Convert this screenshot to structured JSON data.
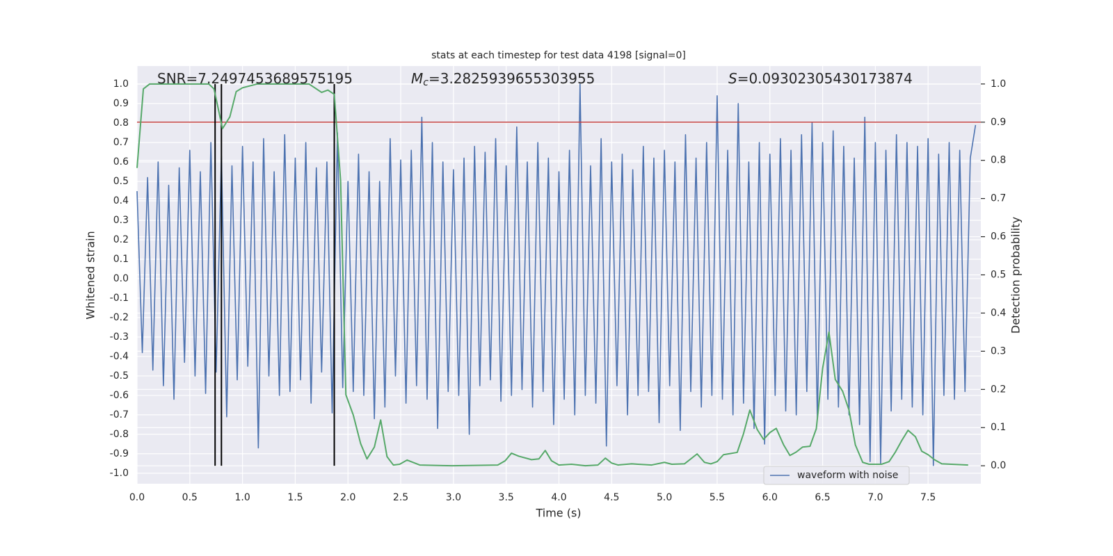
{
  "chart_data": {
    "type": "line",
    "title": "stats at each timestep for test data 4198 [signal=0]",
    "x_label": "Time (s)",
    "y_label": "Whitened strain",
    "y2_label": "Detection probability",
    "annotations": [
      {
        "text": "SNR=7.2497453689575195"
      },
      {
        "symbol": "M",
        "subscript": "c",
        "text": "=3.2825939655303955"
      },
      {
        "symbol": "S",
        "text": "=0.09302305430173874"
      }
    ],
    "xlim": [
      0,
      8
    ],
    "ylim": [
      -1.054,
      1.093
    ],
    "y2lim": [
      -0.047,
      1.047
    ],
    "xticks": [
      {
        "value": 0,
        "label": "0.0"
      },
      0.5,
      {
        "value": 1,
        "label": "1.0"
      },
      1.5,
      {
        "value": 2,
        "label": "2.0"
      },
      2.5,
      {
        "value": 3,
        "label": "3.0"
      },
      3.5,
      {
        "value": 4,
        "label": "4.0"
      },
      4.5,
      {
        "value": 5,
        "label": "5.0"
      },
      5.5,
      {
        "value": 6,
        "label": "6.0"
      },
      6.5,
      {
        "value": 7,
        "label": "7.0"
      },
      7.5
    ],
    "yticks": [
      {
        "value": -1,
        "label": "-1.0"
      },
      -0.9,
      -0.8,
      -0.7,
      -0.6,
      -0.5,
      -0.4,
      -0.3,
      -0.2,
      -0.1,
      {
        "value": 0,
        "label": "0.0"
      },
      0.1,
      0.2,
      0.3,
      0.4,
      0.5,
      0.6,
      0.7,
      0.8,
      0.9,
      {
        "value": 1,
        "label": "1.0"
      }
    ],
    "y2ticks": [
      {
        "value": 0,
        "label": "0.0"
      },
      0.1,
      0.2,
      0.3,
      0.4,
      0.5,
      0.6,
      0.7,
      0.8,
      0.9,
      {
        "value": 1,
        "label": "1.0"
      }
    ],
    "grid": true,
    "legend": "lower right",
    "series": [
      {
        "name": "waveform with noise",
        "color": "#4c72b0",
        "x": [
          0,
          0.05,
          0.1,
          0.15,
          0.2,
          0.25,
          0.3,
          0.35,
          0.4,
          0.45,
          0.5,
          0.55,
          0.6,
          0.65,
          0.7,
          0.75,
          0.8,
          0.85,
          0.9,
          0.95,
          1,
          1.05,
          1.1,
          1.15,
          1.2,
          1.25,
          1.3,
          1.35,
          1.4,
          1.45,
          1.5,
          1.55,
          1.6,
          1.65,
          1.7,
          1.75,
          1.8,
          1.85,
          1.9,
          1.95,
          2,
          2.05,
          2.1,
          2.15,
          2.2,
          2.25,
          2.3,
          2.35,
          2.4,
          2.45,
          2.5,
          2.55,
          2.6,
          2.65,
          2.7,
          2.75,
          2.8,
          2.85,
          2.9,
          2.95,
          3,
          3.05,
          3.1,
          3.15,
          3.2,
          3.25,
          3.3,
          3.35,
          3.4,
          3.45,
          3.5,
          3.55,
          3.6,
          3.65,
          3.7,
          3.75,
          3.8,
          3.85,
          3.9,
          3.95,
          4,
          4.05,
          4.1,
          4.15,
          4.2,
          4.25,
          4.3,
          4.35,
          4.4,
          4.45,
          4.5,
          4.55,
          4.6,
          4.65,
          4.7,
          4.75,
          4.8,
          4.85,
          4.9,
          4.95,
          5,
          5.05,
          5.1,
          5.15,
          5.2,
          5.25,
          5.3,
          5.35,
          5.4,
          5.45,
          5.5,
          5.55,
          5.6,
          5.65,
          5.7,
          5.75,
          5.8,
          5.85,
          5.9,
          5.95,
          6,
          6.05,
          6.1,
          6.15,
          6.2,
          6.25,
          6.3,
          6.35,
          6.4,
          6.45,
          6.5,
          6.55,
          6.6,
          6.65,
          6.7,
          6.75,
          6.8,
          6.85,
          6.9,
          6.95,
          7,
          7.05,
          7.1,
          7.15,
          7.2,
          7.25,
          7.3,
          7.35,
          7.4,
          7.45,
          7.5,
          7.55,
          7.6,
          7.65,
          7.7,
          7.75,
          7.8,
          7.85,
          7.9,
          7.95
        ],
        "values": [
          0.45,
          -0.38,
          0.52,
          -0.47,
          0.6,
          -0.55,
          0.48,
          -0.62,
          0.57,
          -0.43,
          0.66,
          -0.5,
          0.55,
          -0.59,
          0.7,
          -0.48,
          0.63,
          -0.71,
          0.58,
          -0.52,
          0.68,
          -0.45,
          0.6,
          -0.87,
          0.72,
          -0.5,
          0.55,
          -0.6,
          0.74,
          -0.58,
          0.62,
          -0.52,
          0.7,
          -0.64,
          0.57,
          -0.48,
          0.6,
          -0.69,
          0.75,
          -0.56,
          0.5,
          -0.58,
          0.64,
          -0.6,
          0.55,
          -0.72,
          0.5,
          -0.66,
          0.72,
          -0.5,
          0.61,
          -0.64,
          0.66,
          -0.55,
          0.83,
          -0.62,
          0.7,
          -0.77,
          0.6,
          -0.58,
          0.56,
          -0.6,
          0.62,
          -0.8,
          0.68,
          -0.55,
          0.65,
          -0.52,
          0.72,
          -0.63,
          0.58,
          -0.6,
          0.78,
          -0.57,
          0.6,
          -0.66,
          0.7,
          -0.58,
          0.62,
          -0.75,
          0.55,
          -0.62,
          0.66,
          -0.7,
          1.0,
          -0.6,
          0.58,
          -0.64,
          0.72,
          -0.86,
          0.6,
          -0.55,
          0.64,
          -0.7,
          0.56,
          -0.6,
          0.68,
          -0.58,
          0.62,
          -0.74,
          0.66,
          -0.55,
          0.6,
          -0.78,
          0.74,
          -0.58,
          0.62,
          -0.66,
          0.7,
          -0.6,
          0.94,
          -0.62,
          0.66,
          -0.7,
          0.9,
          -0.64,
          0.6,
          -0.77,
          0.7,
          -0.85,
          0.64,
          -0.6,
          0.72,
          -0.68,
          0.66,
          -0.7,
          0.74,
          -0.58,
          0.8,
          -0.72,
          0.7,
          -0.62,
          0.76,
          -0.66,
          0.68,
          -0.7,
          0.62,
          -0.75,
          0.83,
          -0.94,
          0.7,
          -0.95,
          0.66,
          -0.68,
          0.74,
          -0.62,
          0.7,
          -0.66,
          0.68,
          -0.7,
          0.72,
          -0.96,
          0.64,
          -0.6,
          0.7,
          -0.62,
          0.66,
          -0.58,
          0.62,
          0.79
        ]
      },
      {
        "color": "#55a868",
        "axis": "y2",
        "x": [
          0,
          0.06,
          0.12,
          0.68,
          0.73,
          0.81,
          0.88,
          0.94,
          1.0,
          1.14,
          1.63,
          1.75,
          1.81,
          1.87,
          1.93,
          1.98,
          2.05,
          2.12,
          2.18,
          2.25,
          2.31,
          2.37,
          2.43,
          2.49,
          2.56,
          2.68,
          2.99,
          3.42,
          3.49,
          3.55,
          3.62,
          3.74,
          3.81,
          3.87,
          3.93,
          4.0,
          4.12,
          4.25,
          4.37,
          4.44,
          4.5,
          4.56,
          4.69,
          4.75,
          4.88,
          5.0,
          5.07,
          5.19,
          5.31,
          5.38,
          5.44,
          5.5,
          5.56,
          5.69,
          5.75,
          5.81,
          5.88,
          5.94,
          6.0,
          6.06,
          6.13,
          6.19,
          6.25,
          6.31,
          6.38,
          6.44,
          6.5,
          6.56,
          6.62,
          6.69,
          6.75,
          6.81,
          6.88,
          6.94,
          7.06,
          7.13,
          7.19,
          7.25,
          7.31,
          7.38,
          7.44,
          7.5,
          7.56,
          7.63,
          7.88
        ],
        "values": [
          0.78,
          0.987,
          1.0,
          1.0,
          0.987,
          0.883,
          0.914,
          0.98,
          0.99,
          1.0,
          1.0,
          0.978,
          0.984,
          0.973,
          0.747,
          0.186,
          0.133,
          0.058,
          0.018,
          0.049,
          0.12,
          0.024,
          0.002,
          0.004,
          0.015,
          0.002,
          0,
          0.002,
          0.013,
          0.033,
          0.025,
          0.016,
          0.018,
          0.04,
          0.013,
          0.002,
          0.004,
          0,
          0.002,
          0.02,
          0.007,
          0.002,
          0.005,
          0.004,
          0.002,
          0.009,
          0.004,
          0.005,
          0.031,
          0.009,
          0.005,
          0.011,
          0.029,
          0.035,
          0.084,
          0.146,
          0.095,
          0.069,
          0.087,
          0.098,
          0.055,
          0.027,
          0.036,
          0.049,
          0.051,
          0.097,
          0.255,
          0.35,
          0.226,
          0.195,
          0.146,
          0.055,
          0.009,
          0.004,
          0.004,
          0.011,
          0.036,
          0.066,
          0.093,
          0.076,
          0.038,
          0.029,
          0.016,
          0.005,
          0.002
        ]
      }
    ],
    "hlines": [
      {
        "value": 0.9,
        "axis": "y2",
        "color": "#c03d3e"
      }
    ],
    "vlines": {
      "x": [
        0.74,
        0.8,
        1.87
      ],
      "axis": "y2",
      "span": [
        0,
        1
      ],
      "color": "#000000"
    }
  }
}
